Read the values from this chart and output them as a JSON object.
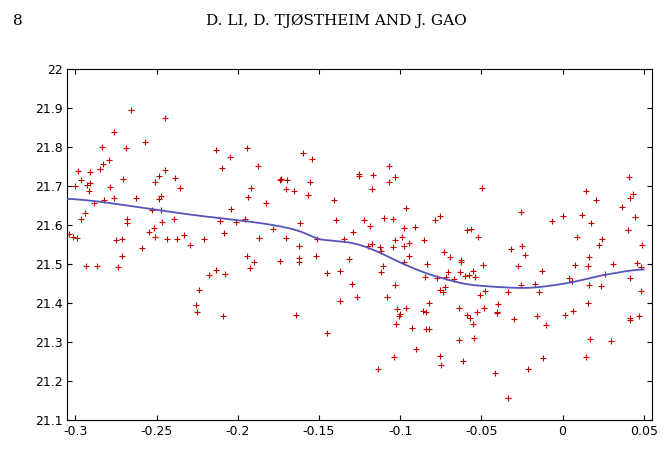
{
  "title": "D. LI, D. TJØSTHEIM AND J. GAO",
  "page_number": "8",
  "xlim": [
    -0.305,
    0.055
  ],
  "ylim": [
    21.1,
    22.0
  ],
  "xticks": [
    -0.3,
    -0.25,
    -0.2,
    -0.15,
    -0.1,
    -0.05,
    0.0,
    0.05
  ],
  "yticks": [
    21.1,
    21.2,
    21.3,
    21.4,
    21.5,
    21.6,
    21.7,
    21.8,
    21.9,
    22.0
  ],
  "scatter_color": "#cc0000",
  "line_color": "#5555bb",
  "seed": 42,
  "n_points": 250,
  "background_color": "#ffffff",
  "curve_x": [
    -0.305,
    -0.29,
    -0.27,
    -0.25,
    -0.23,
    -0.21,
    -0.19,
    -0.17,
    -0.16,
    -0.155,
    -0.15,
    -0.145,
    -0.14,
    -0.13,
    -0.12,
    -0.11,
    -0.1,
    -0.09,
    -0.08,
    -0.07,
    -0.06,
    -0.05,
    -0.04,
    -0.03,
    -0.02,
    -0.01,
    0.0,
    0.01,
    0.02,
    0.03,
    0.04,
    0.05
  ],
  "curve_y": [
    21.668,
    21.663,
    21.652,
    21.64,
    21.628,
    21.618,
    21.608,
    21.594,
    21.582,
    21.573,
    21.565,
    21.562,
    21.56,
    21.555,
    21.543,
    21.525,
    21.505,
    21.487,
    21.472,
    21.46,
    21.45,
    21.445,
    21.442,
    21.44,
    21.44,
    21.444,
    21.45,
    21.458,
    21.468,
    21.476,
    21.483,
    21.487
  ]
}
